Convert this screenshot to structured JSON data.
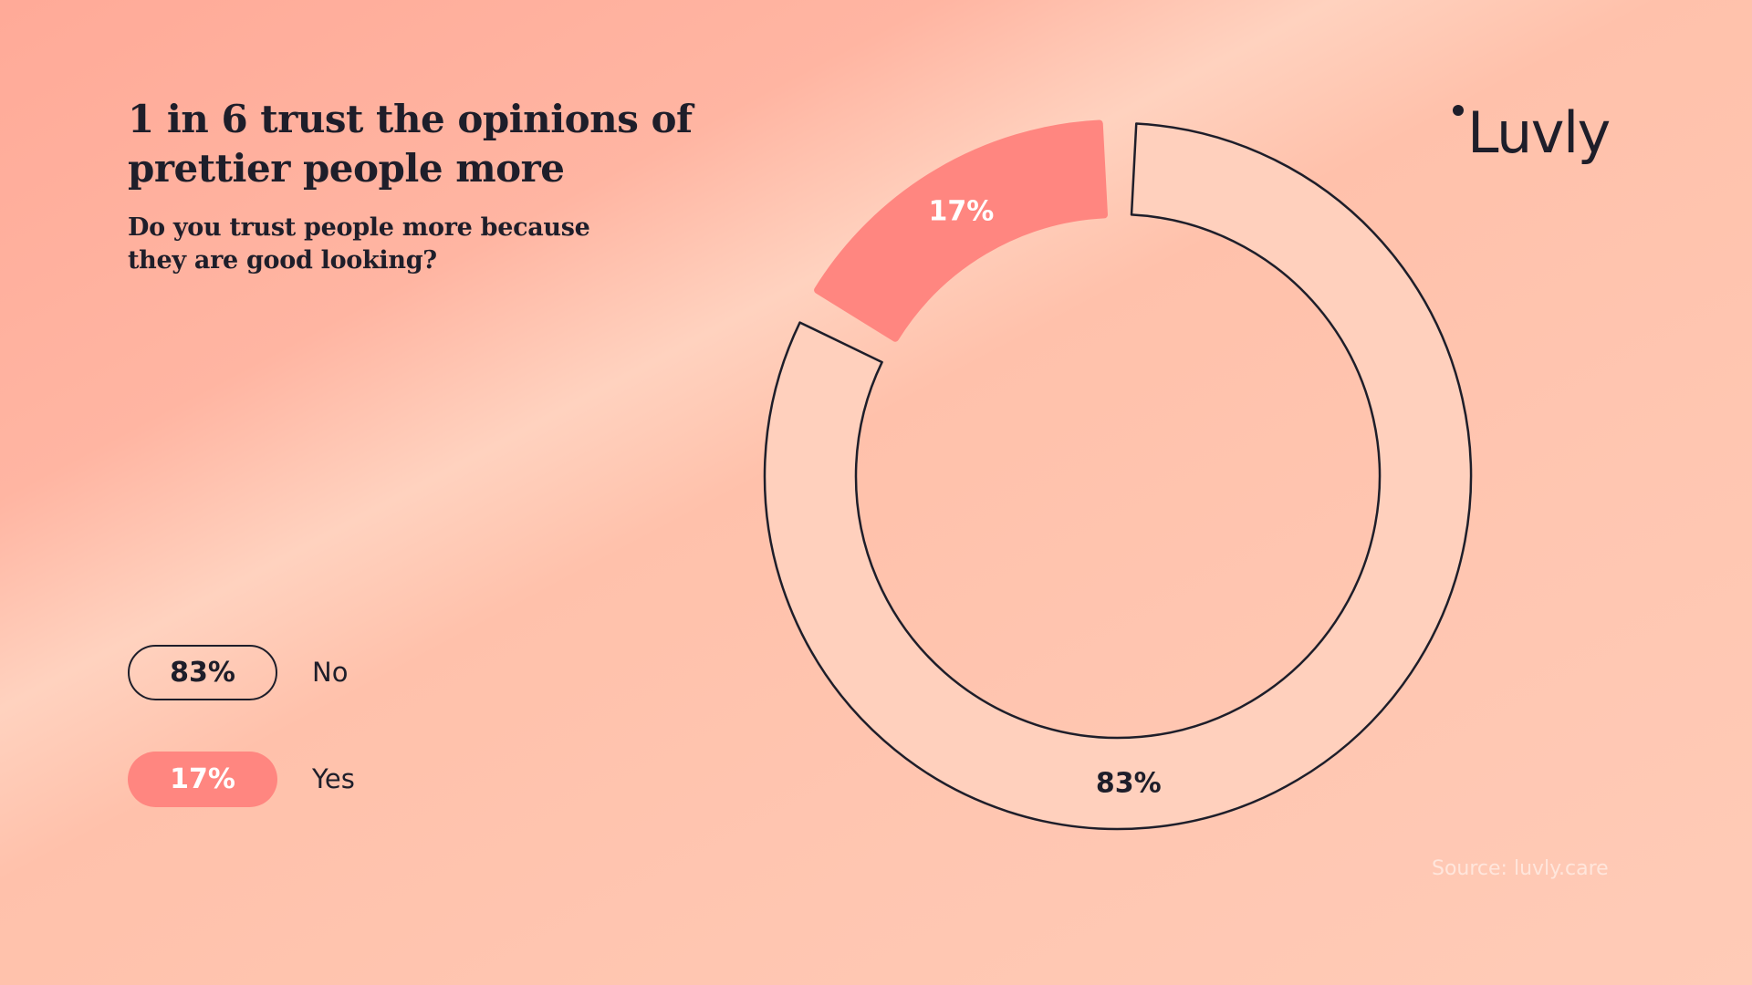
{
  "header": {
    "title": "1 in 6 trust the opinions of prettier people more",
    "subtitle": "Do you trust people more because they are good looking?"
  },
  "brand": {
    "logo_text": "Luvly"
  },
  "footer": {
    "source": "Source: luvly.care"
  },
  "colors": {
    "yes_fill": "#ff8680",
    "no_fill": "#ffd0bd",
    "outline": "#1e1e2a",
    "yes_text": "#ffffff",
    "no_text": "#1e1e2a"
  },
  "chart_data": {
    "type": "pie",
    "donut": true,
    "legend_position": "bottom-left",
    "series": [
      {
        "name": "No",
        "value": 83,
        "label": "83%"
      },
      {
        "name": "Yes",
        "value": 17,
        "label": "17%"
      }
    ]
  }
}
